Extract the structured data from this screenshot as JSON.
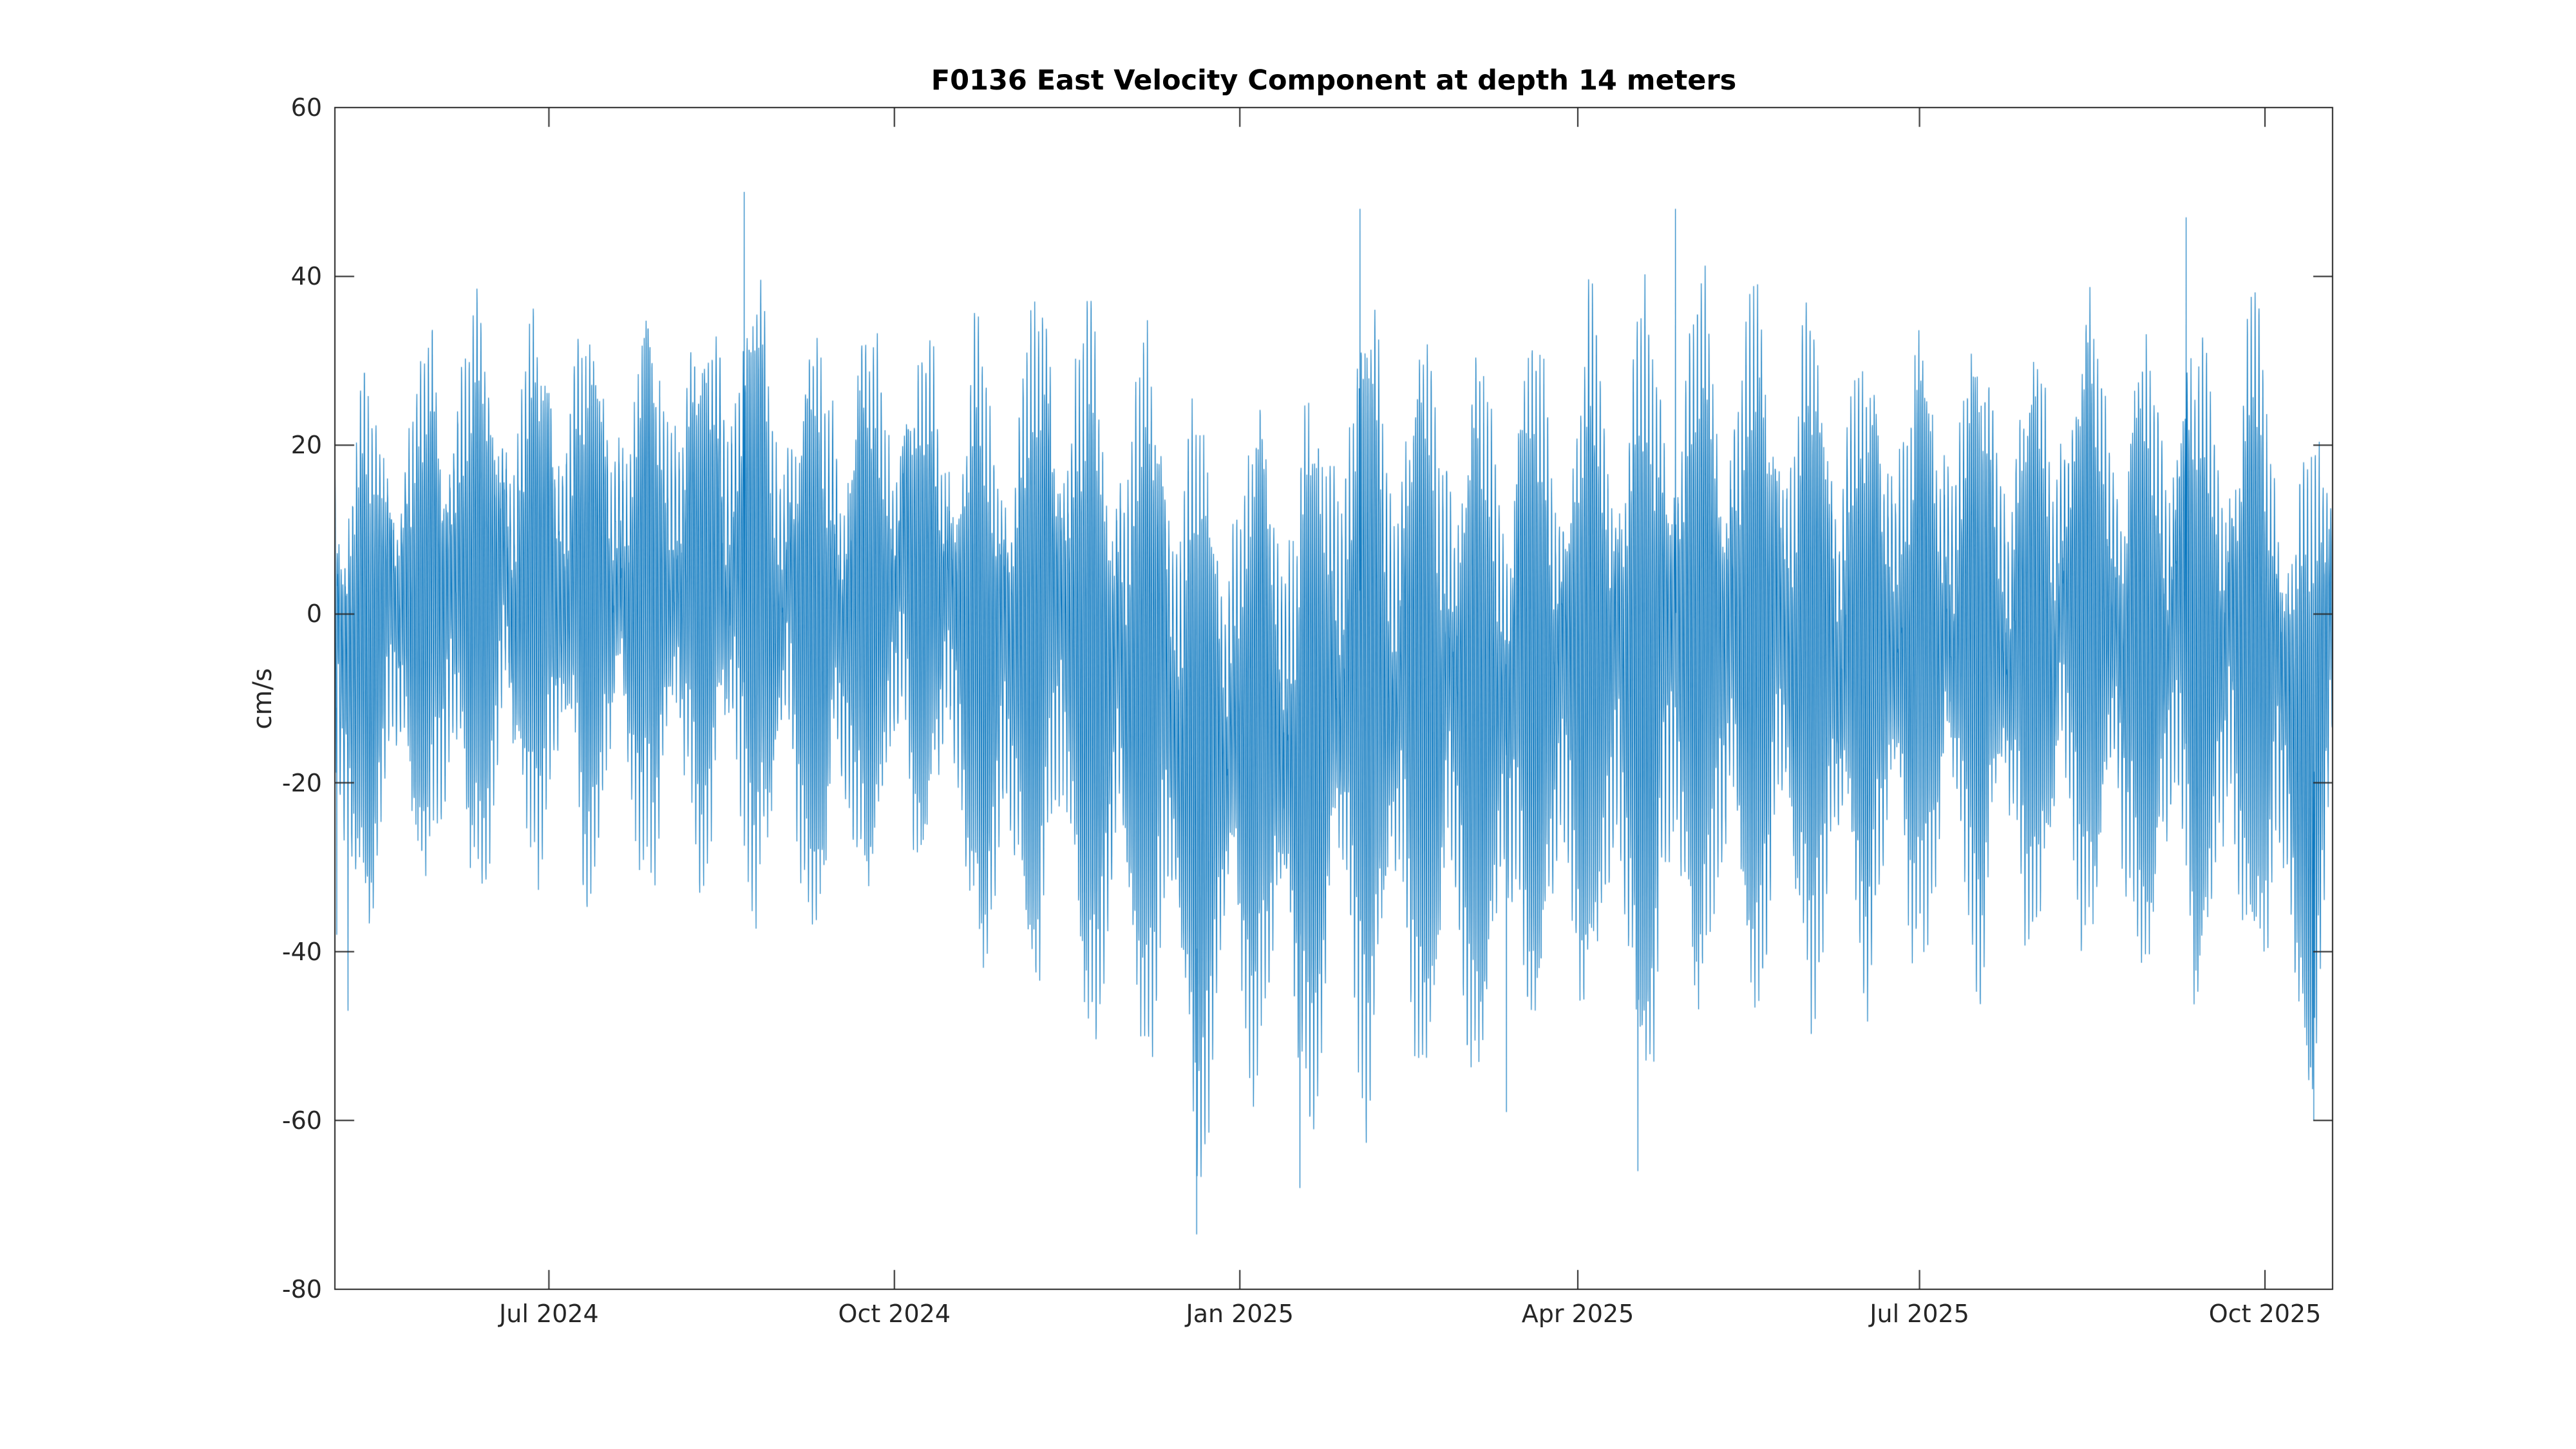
{
  "page": {
    "background_color": "#ffffff"
  },
  "chart_data": {
    "type": "line",
    "title": "F0136 East Velocity Component at depth 14 meters",
    "ylabel": "cm/s",
    "xlabel": "",
    "series_name": "east velocity component",
    "line_color": "#0072BD",
    "axis_color": "#262626",
    "title_color": "#000000",
    "grid": false,
    "legend": null,
    "ylim": [
      -80,
      60
    ],
    "y_ticks": [
      60,
      40,
      20,
      0,
      -20,
      -40,
      -60,
      -80
    ],
    "x_ticks": [
      {
        "label": "Jul 2024",
        "day": 57
      },
      {
        "label": "Oct 2024",
        "day": 149
      },
      {
        "label": "Jan 2025",
        "day": 241
      },
      {
        "label": "Apr 2025",
        "day": 331
      },
      {
        "label": "Jul 2025",
        "day": 422
      },
      {
        "label": "Oct 2025",
        "day": 514
      }
    ],
    "x_axis": {
      "start_date": "2024-05-05",
      "end_date": "2025-10-19",
      "span_days": 532,
      "samples_per_day": 24
    },
    "tidal_model": {
      "m2_period_hours": 12.42,
      "k1_period_hours": 23.93,
      "spring_neap_period_days": 14.77,
      "seed": 1234
    },
    "envelope_day_hi_lo": [
      [
        0,
        34,
        -35
      ],
      [
        3,
        33,
        -47
      ],
      [
        14,
        30,
        -30
      ],
      [
        27,
        38,
        -33
      ],
      [
        32,
        47,
        -40
      ],
      [
        45,
        36,
        -30
      ],
      [
        57,
        40,
        -32
      ],
      [
        66,
        42,
        -35
      ],
      [
        76,
        33,
        -28
      ],
      [
        86,
        43,
        -35
      ],
      [
        96,
        38,
        -30
      ],
      [
        109,
        50,
        -38
      ],
      [
        119,
        36,
        -33
      ],
      [
        130,
        40,
        -42
      ],
      [
        142,
        38,
        -35
      ],
      [
        150,
        40,
        -32
      ],
      [
        162,
        33,
        -28
      ],
      [
        172,
        38,
        -46
      ],
      [
        182,
        40,
        -48
      ],
      [
        192,
        47,
        -42
      ],
      [
        202,
        40,
        -55
      ],
      [
        212,
        37,
        -52
      ],
      [
        222,
        42,
        -58
      ],
      [
        229,
        32,
        -70
      ],
      [
        237,
        28,
        -58
      ],
      [
        248,
        32,
        -55
      ],
      [
        257,
        30,
        -64
      ],
      [
        266,
        38,
        -55
      ],
      [
        273,
        48,
        -60
      ],
      [
        283,
        40,
        -55
      ],
      [
        293,
        42,
        -58
      ],
      [
        303,
        37,
        -58
      ],
      [
        312,
        38,
        -55
      ],
      [
        317,
        40,
        -50
      ],
      [
        327,
        38,
        -53
      ],
      [
        337,
        42,
        -48
      ],
      [
        347,
        44,
        -60
      ],
      [
        357,
        47,
        -52
      ],
      [
        367,
        44,
        -48
      ],
      [
        377,
        46,
        -50
      ],
      [
        387,
        40,
        -45
      ],
      [
        397,
        42,
        -50
      ],
      [
        407,
        36,
        -44
      ],
      [
        417,
        40,
        -46
      ],
      [
        427,
        36,
        -40
      ],
      [
        437,
        40,
        -44
      ],
      [
        447,
        34,
        -40
      ],
      [
        457,
        38,
        -42
      ],
      [
        467,
        44,
        -40
      ],
      [
        477,
        36,
        -44
      ],
      [
        487,
        40,
        -46
      ],
      [
        493,
        46,
        -44
      ],
      [
        497,
        36,
        -48
      ],
      [
        507,
        40,
        -44
      ],
      [
        514,
        42,
        -46
      ],
      [
        519,
        30,
        -50
      ],
      [
        523,
        26,
        -58
      ],
      [
        527,
        26,
        -60
      ],
      [
        530,
        28,
        -45
      ],
      [
        532,
        28,
        -25
      ]
    ],
    "extreme_spikes_day_value": [
      [
        0,
        55
      ],
      [
        0.5,
        -38
      ],
      [
        3.5,
        -47
      ],
      [
        109,
        50
      ],
      [
        229.5,
        -73.5
      ],
      [
        257,
        -68
      ],
      [
        273,
        48
      ],
      [
        312,
        -59
      ],
      [
        347,
        -66
      ],
      [
        357,
        48
      ],
      [
        493,
        47
      ],
      [
        527,
        -60
      ]
    ]
  }
}
